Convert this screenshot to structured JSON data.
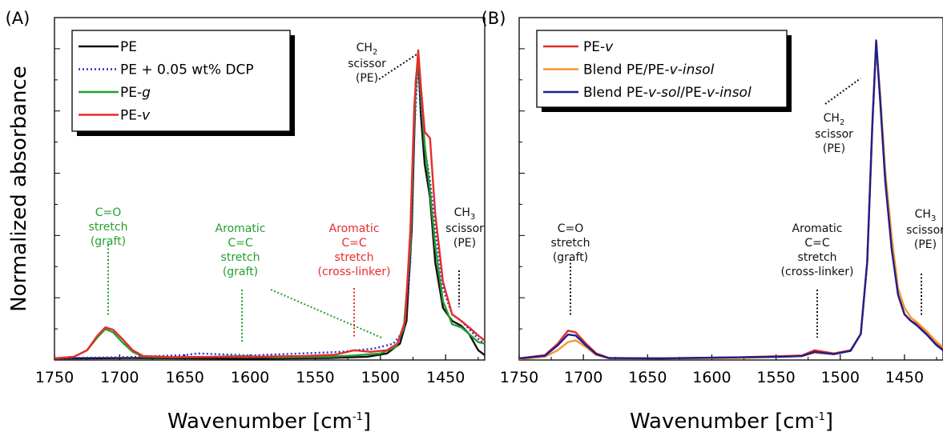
{
  "chart_data": [
    {
      "type": "line",
      "panel_label": "(A)",
      "xlabel_main": "Wavenumber [cm",
      "xlabel_sup": "-1",
      "xlabel_end": "]",
      "ylabel": "Normalized absorbance",
      "xlim": [
        1750,
        1420
      ],
      "x_reversed": true,
      "ylim": [
        0,
        1.05
      ],
      "xticks": [
        1750,
        1700,
        1650,
        1600,
        1550,
        1500,
        1450
      ],
      "grid": false,
      "legend_position": "top-left",
      "series": [
        {
          "name": "PE",
          "name_parts": [
            {
              "t": "PE",
              "i": false
            }
          ],
          "color": "#111111",
          "dash": "",
          "points": [
            [
              1750,
              0.005
            ],
            [
              1690,
              0.006
            ],
            [
              1600,
              0.004
            ],
            [
              1540,
              0.006
            ],
            [
              1510,
              0.01
            ],
            [
              1495,
              0.02
            ],
            [
              1485,
              0.05
            ],
            [
              1480,
              0.12
            ],
            [
              1476,
              0.4
            ],
            [
              1473,
              0.85
            ],
            [
              1471,
              0.93
            ],
            [
              1469,
              0.75
            ],
            [
              1466,
              0.6
            ],
            [
              1462,
              0.5
            ],
            [
              1458,
              0.3
            ],
            [
              1452,
              0.16
            ],
            [
              1445,
              0.12
            ],
            [
              1438,
              0.105
            ],
            [
              1432,
              0.08
            ],
            [
              1425,
              0.03
            ],
            [
              1420,
              0.015
            ]
          ]
        },
        {
          "name": "PE + 0.05 wt% DCP",
          "name_parts": [
            {
              "t": "PE + 0.05 wt% DCP",
              "i": false
            }
          ],
          "color": "#2b2bd8",
          "dash": "2,3",
          "points": [
            [
              1750,
              0.006
            ],
            [
              1700,
              0.008
            ],
            [
              1650,
              0.015
            ],
            [
              1640,
              0.02
            ],
            [
              1600,
              0.014
            ],
            [
              1560,
              0.02
            ],
            [
              1530,
              0.025
            ],
            [
              1505,
              0.035
            ],
            [
              1490,
              0.05
            ],
            [
              1482,
              0.09
            ],
            [
              1477,
              0.3
            ],
            [
              1474,
              0.7
            ],
            [
              1471,
              0.92
            ],
            [
              1469,
              0.78
            ],
            [
              1466,
              0.65
            ],
            [
              1462,
              0.55
            ],
            [
              1458,
              0.4
            ],
            [
              1452,
              0.22
            ],
            [
              1445,
              0.14
            ],
            [
              1438,
              0.12
            ],
            [
              1432,
              0.095
            ],
            [
              1425,
              0.065
            ],
            [
              1420,
              0.05
            ]
          ]
        },
        {
          "name": "PE-g",
          "name_parts": [
            {
              "t": "PE-",
              "i": false
            },
            {
              "t": "g",
              "i": true
            }
          ],
          "color": "#239f2c",
          "dash": "",
          "points": [
            [
              1750,
              0.005
            ],
            [
              1735,
              0.01
            ],
            [
              1725,
              0.03
            ],
            [
              1717,
              0.07
            ],
            [
              1711,
              0.095
            ],
            [
              1705,
              0.085
            ],
            [
              1698,
              0.055
            ],
            [
              1690,
              0.025
            ],
            [
              1682,
              0.01
            ],
            [
              1660,
              0.008
            ],
            [
              1640,
              0.009
            ],
            [
              1605,
              0.012
            ],
            [
              1580,
              0.008
            ],
            [
              1540,
              0.01
            ],
            [
              1520,
              0.014
            ],
            [
              1500,
              0.02
            ],
            [
              1488,
              0.04
            ],
            [
              1482,
              0.1
            ],
            [
              1477,
              0.35
            ],
            [
              1474,
              0.75
            ],
            [
              1471,
              0.94
            ],
            [
              1469,
              0.82
            ],
            [
              1466,
              0.66
            ],
            [
              1462,
              0.52
            ],
            [
              1458,
              0.35
            ],
            [
              1452,
              0.18
            ],
            [
              1445,
              0.11
            ],
            [
              1438,
              0.1
            ],
            [
              1432,
              0.08
            ],
            [
              1425,
              0.055
            ],
            [
              1420,
              0.05
            ]
          ]
        },
        {
          "name": "PE-v",
          "name_parts": [
            {
              "t": "PE-",
              "i": false
            },
            {
              "t": "v",
              "i": true
            }
          ],
          "color": "#e82b2b",
          "dash": "",
          "points": [
            [
              1750,
              0.005
            ],
            [
              1735,
              0.01
            ],
            [
              1725,
              0.03
            ],
            [
              1717,
              0.075
            ],
            [
              1711,
              0.1
            ],
            [
              1705,
              0.093
            ],
            [
              1698,
              0.065
            ],
            [
              1690,
              0.03
            ],
            [
              1682,
              0.012
            ],
            [
              1660,
              0.009
            ],
            [
              1600,
              0.01
            ],
            [
              1560,
              0.012
            ],
            [
              1535,
              0.016
            ],
            [
              1520,
              0.03
            ],
            [
              1508,
              0.025
            ],
            [
              1495,
              0.03
            ],
            [
              1487,
              0.05
            ],
            [
              1481,
              0.12
            ],
            [
              1477,
              0.4
            ],
            [
              1474,
              0.78
            ],
            [
              1471,
              0.95
            ],
            [
              1469,
              0.84
            ],
            [
              1466,
              0.7
            ],
            [
              1462,
              0.68
            ],
            [
              1458,
              0.45
            ],
            [
              1452,
              0.24
            ],
            [
              1445,
              0.14
            ],
            [
              1438,
              0.12
            ],
            [
              1432,
              0.1
            ],
            [
              1425,
              0.075
            ],
            [
              1420,
              0.06
            ]
          ]
        }
      ],
      "annotations": [
        {
          "lines": [
            "C=O",
            "stretch",
            "(graft)"
          ],
          "color": "#239f2c"
        },
        {
          "lines": [
            "Aromatic",
            "C=C",
            "stretch",
            "(graft)"
          ],
          "color": "#239f2c"
        },
        {
          "lines": [
            "Aromatic",
            "C=C",
            "stretch",
            "(cross-linker)"
          ],
          "color": "#e82b2b"
        },
        {
          "main": "CH",
          "sub": "2",
          "lines": [
            "scissor",
            "(PE)"
          ],
          "color": "#111111"
        },
        {
          "main": "CH",
          "sub": "3",
          "lines": [
            "scissor",
            "(PE)"
          ],
          "color": "#111111"
        }
      ]
    },
    {
      "type": "line",
      "panel_label": "(B)",
      "xlabel_main": "Wavenumber [cm",
      "xlabel_sup": "-1",
      "xlabel_end": "]",
      "xlim": [
        1750,
        1420
      ],
      "x_reversed": true,
      "ylim": [
        0,
        1.05
      ],
      "xticks": [
        1750,
        1700,
        1650,
        1600,
        1550,
        1500,
        1450
      ],
      "grid": false,
      "legend_position": "top-left",
      "series": [
        {
          "name": "PE-v",
          "name_parts": [
            {
              "t": "PE-",
              "i": false
            },
            {
              "t": "v",
              "i": true
            }
          ],
          "color": "#e82b2b",
          "dash": "",
          "points": [
            [
              1750,
              0.005
            ],
            [
              1730,
              0.015
            ],
            [
              1720,
              0.05
            ],
            [
              1712,
              0.09
            ],
            [
              1706,
              0.085
            ],
            [
              1698,
              0.05
            ],
            [
              1690,
              0.02
            ],
            [
              1680,
              0.006
            ],
            [
              1640,
              0.005
            ],
            [
              1580,
              0.008
            ],
            [
              1545,
              0.012
            ],
            [
              1530,
              0.014
            ],
            [
              1520,
              0.03
            ],
            [
              1505,
              0.02
            ],
            [
              1492,
              0.03
            ],
            [
              1484,
              0.08
            ],
            [
              1479,
              0.3
            ],
            [
              1475,
              0.72
            ],
            [
              1472,
              0.97
            ],
            [
              1469,
              0.8
            ],
            [
              1465,
              0.55
            ],
            [
              1460,
              0.35
            ],
            [
              1455,
              0.2
            ],
            [
              1450,
              0.14
            ],
            [
              1445,
              0.12
            ],
            [
              1440,
              0.11
            ],
            [
              1432,
              0.08
            ],
            [
              1425,
              0.05
            ],
            [
              1420,
              0.035
            ]
          ]
        },
        {
          "name": "Blend PE/PE-v-insol",
          "name_parts": [
            {
              "t": "Blend PE/PE-",
              "i": false
            },
            {
              "t": "v",
              "i": true
            },
            {
              "t": "-",
              "i": false
            },
            {
              "t": "insol",
              "i": true
            }
          ],
          "color": "#f5962e",
          "dash": "",
          "points": [
            [
              1750,
              0.003
            ],
            [
              1730,
              0.01
            ],
            [
              1720,
              0.03
            ],
            [
              1712,
              0.055
            ],
            [
              1706,
              0.06
            ],
            [
              1698,
              0.04
            ],
            [
              1690,
              0.015
            ],
            [
              1680,
              0.005
            ],
            [
              1640,
              0.005
            ],
            [
              1580,
              0.006
            ],
            [
              1545,
              0.01
            ],
            [
              1530,
              0.012
            ],
            [
              1520,
              0.022
            ],
            [
              1505,
              0.018
            ],
            [
              1492,
              0.028
            ],
            [
              1484,
              0.08
            ],
            [
              1479,
              0.3
            ],
            [
              1475,
              0.73
            ],
            [
              1472,
              0.96
            ],
            [
              1469,
              0.82
            ],
            [
              1465,
              0.58
            ],
            [
              1460,
              0.38
            ],
            [
              1455,
              0.22
            ],
            [
              1450,
              0.16
            ],
            [
              1445,
              0.13
            ],
            [
              1440,
              0.115
            ],
            [
              1432,
              0.085
            ],
            [
              1425,
              0.055
            ],
            [
              1420,
              0.04
            ]
          ]
        },
        {
          "name": "Blend PE-v-sol/PE-v-insol",
          "name_parts": [
            {
              "t": "Blend PE-",
              "i": false
            },
            {
              "t": "v",
              "i": true
            },
            {
              "t": "-",
              "i": false
            },
            {
              "t": "sol",
              "i": true
            },
            {
              "t": "/PE-",
              "i": false
            },
            {
              "t": "v",
              "i": true
            },
            {
              "t": "-",
              "i": false
            },
            {
              "t": "insol",
              "i": true
            }
          ],
          "color": "#1d1f8e",
          "dash": "",
          "points": [
            [
              1750,
              0.005
            ],
            [
              1730,
              0.013
            ],
            [
              1720,
              0.045
            ],
            [
              1712,
              0.078
            ],
            [
              1706,
              0.075
            ],
            [
              1698,
              0.045
            ],
            [
              1690,
              0.018
            ],
            [
              1680,
              0.006
            ],
            [
              1640,
              0.005
            ],
            [
              1580,
              0.008
            ],
            [
              1545,
              0.01
            ],
            [
              1530,
              0.012
            ],
            [
              1520,
              0.025
            ],
            [
              1505,
              0.018
            ],
            [
              1492,
              0.028
            ],
            [
              1484,
              0.08
            ],
            [
              1479,
              0.3
            ],
            [
              1475,
              0.72
            ],
            [
              1472,
              0.98
            ],
            [
              1469,
              0.8
            ],
            [
              1465,
              0.55
            ],
            [
              1460,
              0.34
            ],
            [
              1455,
              0.2
            ],
            [
              1450,
              0.14
            ],
            [
              1445,
              0.12
            ],
            [
              1440,
              0.105
            ],
            [
              1432,
              0.075
            ],
            [
              1425,
              0.045
            ],
            [
              1420,
              0.03
            ]
          ]
        }
      ],
      "annotations": [
        {
          "lines": [
            "C=O",
            "stretch",
            "(graft)"
          ],
          "color": "#111111"
        },
        {
          "lines": [
            "Aromatic",
            "C=C",
            "stretch",
            "(cross-linker)"
          ],
          "color": "#111111"
        },
        {
          "main": "CH",
          "sub": "2",
          "lines": [
            "scissor",
            "(PE)"
          ],
          "color": "#111111"
        },
        {
          "main": "CH",
          "sub": "3",
          "lines": [
            "scissor",
            "(PE)"
          ],
          "color": "#111111"
        }
      ]
    }
  ]
}
